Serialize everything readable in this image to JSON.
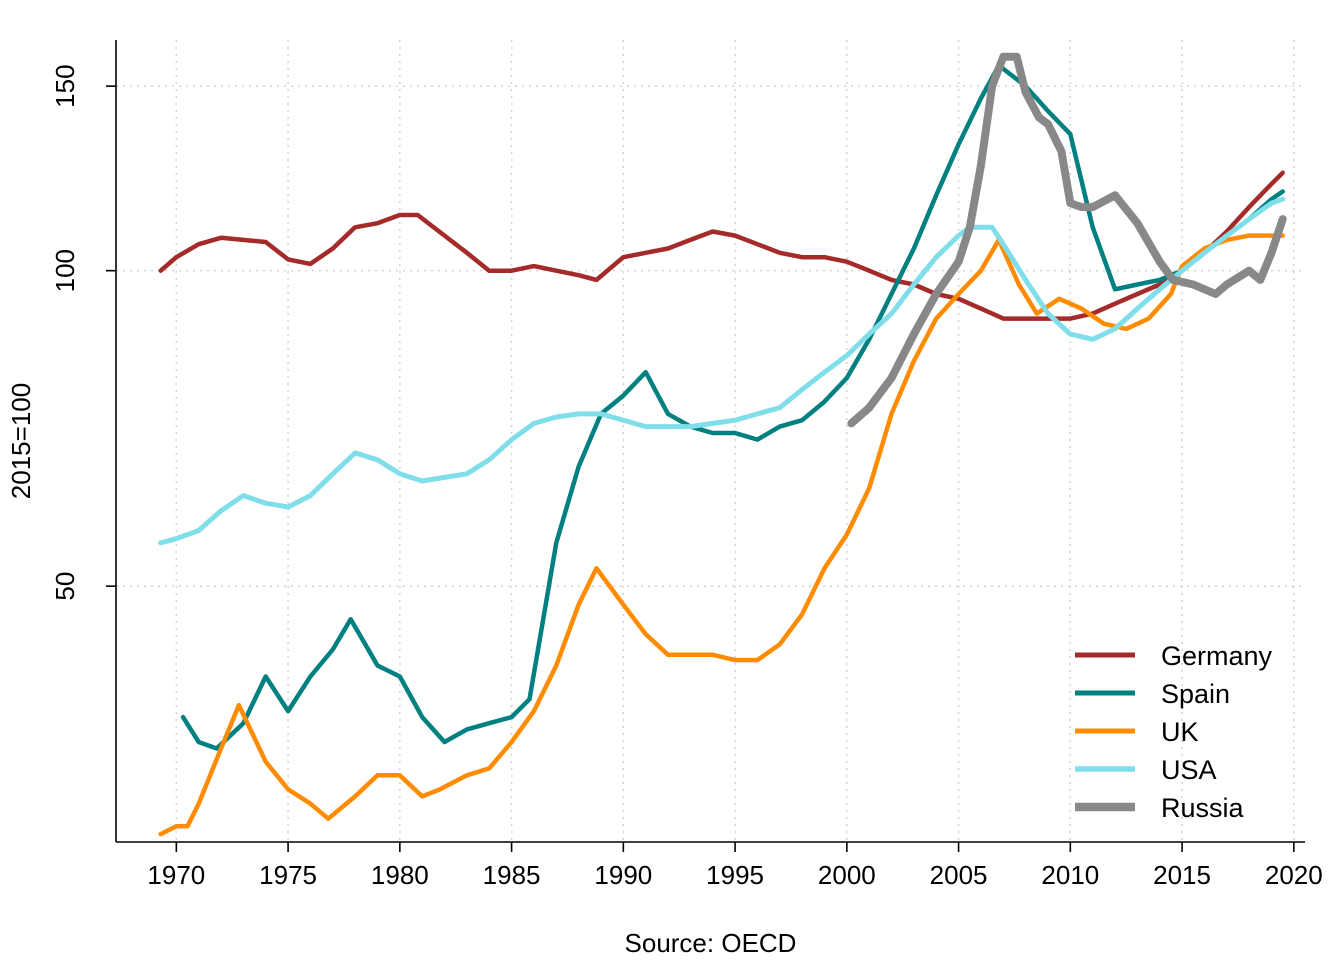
{
  "chart_data": {
    "type": "line",
    "xlabel": "Source: OECD",
    "ylabel": "2015=100",
    "y_scale": "log",
    "xlim": [
      1967.3,
      2020.5
    ],
    "ylim": [
      28.5,
      166
    ],
    "x_ticks": [
      1970,
      1975,
      1980,
      1985,
      1990,
      1995,
      2000,
      2005,
      2010,
      2015,
      2020
    ],
    "x_tick_labels": [
      "1970",
      "1975",
      "1980",
      "1985",
      "1990",
      "1995",
      "2000",
      "2005",
      "2010",
      "2015",
      "2020"
    ],
    "y_ticks": [
      50,
      100,
      150
    ],
    "y_tick_labels": [
      "50",
      "100",
      "150"
    ],
    "grid": true,
    "legend_position": "bottom-right",
    "series": [
      {
        "name": "Germany",
        "color": "#a52a2a",
        "x": [
          1969.3,
          1970,
          1971,
          1972,
          1973,
          1974,
          1975,
          1976,
          1977,
          1978,
          1979,
          1980,
          1980.8,
          1982,
          1983,
          1984,
          1985,
          1986,
          1987,
          1988,
          1988.8,
          1990,
          1991,
          1992,
          1993,
          1994,
          1995,
          1996,
          1997,
          1998,
          1999,
          2000,
          2001,
          2002,
          2003,
          2004,
          2005,
          2006,
          2007,
          2008,
          2009,
          2010,
          2011,
          2012,
          2013,
          2014,
          2015,
          2016,
          2017,
          2018,
          2019,
          2019.5
        ],
        "y": [
          100,
          103,
          106,
          107.5,
          107,
          106.5,
          102.5,
          101.5,
          105,
          110,
          111,
          113,
          113,
          108,
          104,
          100,
          100,
          101,
          100,
          99,
          98,
          103,
          104,
          105,
          107,
          109,
          108,
          106,
          104,
          103,
          103,
          102,
          100,
          98,
          97,
          95,
          94,
          92,
          90,
          90,
          90,
          90,
          91,
          93,
          95,
          97,
          100,
          104,
          109,
          115,
          121,
          124
        ]
      },
      {
        "name": "Spain",
        "color": "#008080",
        "x": [
          1970.3,
          1971,
          1971.8,
          1973,
          1974,
          1975,
          1976,
          1977,
          1977.8,
          1979,
          1980,
          1981,
          1982,
          1983,
          1984,
          1985,
          1985.8,
          1987,
          1988,
          1989,
          1990,
          1991,
          1992,
          1993,
          1994,
          1995,
          1996,
          1997,
          1998,
          1999,
          2000,
          2001,
          2002,
          2003,
          2004,
          2005,
          2006,
          2006.8,
          2008,
          2009,
          2010,
          2011,
          2012,
          2013,
          2014,
          2015,
          2016,
          2017,
          2018,
          2019,
          2019.5
        ],
        "y": [
          37.5,
          35.5,
          35,
          37,
          41,
          38,
          41,
          43.5,
          46.5,
          42,
          41,
          37.5,
          35.5,
          36.5,
          37,
          37.5,
          39,
          55,
          65,
          73,
          76,
          80,
          73,
          71,
          70,
          70,
          69,
          71,
          72,
          75,
          79,
          86,
          95,
          105,
          118,
          132,
          146,
          157,
          150,
          142,
          135,
          110,
          96,
          97,
          98,
          100,
          104,
          108,
          112,
          117,
          119
        ]
      },
      {
        "name": "UK",
        "color": "#ff8c00",
        "x": [
          1969.3,
          1970,
          1970.5,
          1971,
          1972,
          1972.8,
          1974,
          1975,
          1976,
          1976.8,
          1978,
          1979,
          1980,
          1981,
          1981.8,
          1983,
          1984,
          1985,
          1986,
          1987,
          1988,
          1988.8,
          1990,
          1991,
          1992,
          1993,
          1994,
          1995,
          1996,
          1997,
          1998,
          1999,
          2000,
          2001,
          2002,
          2003,
          2004,
          2005,
          2006,
          2006.8,
          2007.7,
          2008.5,
          2009.5,
          2010.5,
          2011.5,
          2012.5,
          2013.5,
          2014.5,
          2015,
          2016,
          2017,
          2018,
          2019,
          2019.5
        ],
        "y": [
          29,
          29.5,
          29.5,
          31,
          35,
          38.5,
          34,
          32,
          31,
          30,
          31.5,
          33,
          33,
          31.5,
          32,
          33,
          33.5,
          35.5,
          38,
          42,
          48,
          52,
          48,
          45,
          43,
          43,
          43,
          42.5,
          42.5,
          44,
          47,
          52,
          56,
          62,
          73,
          82,
          90,
          95,
          100,
          107,
          97,
          91,
          94,
          92,
          89,
          88,
          90,
          95,
          101,
          105,
          107,
          108,
          108,
          108
        ]
      },
      {
        "name": "USA",
        "color": "#80deea",
        "x": [
          1969.3,
          1970,
          1971,
          1972,
          1973,
          1974,
          1975,
          1976,
          1977,
          1978,
          1979,
          1980,
          1981,
          1982,
          1983,
          1984,
          1985,
          1986,
          1987,
          1988,
          1989,
          1990,
          1991,
          1992,
          1993,
          1994,
          1995,
          1996,
          1997,
          1998,
          1999,
          2000,
          2001,
          2002,
          2003,
          2004,
          2005,
          2005.5,
          2006.5,
          2007,
          2008,
          2009,
          2010,
          2011,
          2012,
          2013,
          2014,
          2015,
          2016,
          2017,
          2018,
          2019,
          2019.5
        ],
        "y": [
          55,
          55.5,
          56.5,
          59,
          61,
          60,
          59.5,
          61,
          64,
          67,
          66,
          64,
          63,
          63.5,
          64,
          66,
          69,
          71.5,
          72.5,
          73,
          73,
          72,
          71,
          71,
          71,
          71.5,
          72,
          73,
          74,
          77,
          80,
          83,
          87,
          91,
          97,
          103,
          108,
          110,
          110,
          106,
          98,
          91,
          87,
          86,
          88,
          92,
          96,
          100,
          104,
          108,
          112,
          116,
          117
        ]
      },
      {
        "name": "Russia",
        "color": "#888888",
        "x": [
          2000.2,
          2001,
          2002,
          2003,
          2004,
          2005,
          2005.5,
          2006,
          2006.5,
          2007,
          2007.6,
          2008,
          2008.6,
          2009,
          2009.6,
          2010,
          2010.5,
          2011,
          2012,
          2013,
          2014,
          2014.6,
          2015.5,
          2016.5,
          2017,
          2018,
          2018.5,
          2019,
          2019.5
        ],
        "y": [
          71.5,
          74,
          79,
          87,
          95,
          102,
          110,
          126,
          150,
          160,
          160,
          148,
          140,
          138,
          130,
          116,
          115,
          115,
          118,
          111,
          102,
          98,
          97,
          95,
          97,
          100,
          98,
          104,
          112
        ]
      }
    ]
  }
}
